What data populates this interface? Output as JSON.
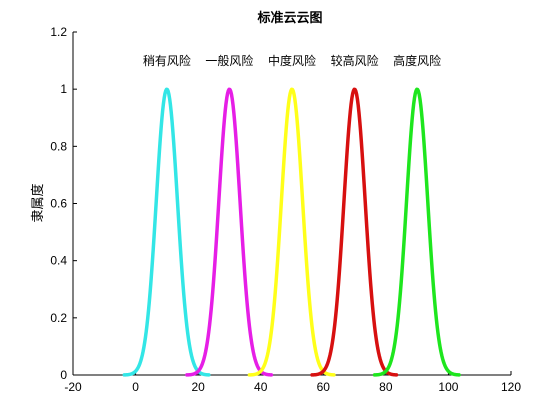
{
  "chart_data": {
    "type": "line",
    "title": "标准云云图",
    "xlabel": "",
    "ylabel": "隶属度",
    "xlim": [
      -20,
      120
    ],
    "ylim": [
      0,
      1.2
    ],
    "xticks": [
      -20,
      0,
      20,
      40,
      60,
      80,
      100,
      120
    ],
    "yticks": [
      0,
      0.2,
      0.4,
      0.6,
      0.8,
      1,
      1.2
    ],
    "grid": false,
    "series": [
      {
        "name": "稍有风险",
        "mean": 10,
        "sd": 3.4,
        "color": "#33e6e6"
      },
      {
        "name": "一般风险",
        "mean": 30,
        "sd": 3.4,
        "color": "#e61ee6"
      },
      {
        "name": "中度风险",
        "mean": 50,
        "sd": 3.4,
        "color": "#ffff1a"
      },
      {
        "name": "较高风险",
        "mean": 70,
        "sd": 3.4,
        "color": "#d71010"
      },
      {
        "name": "高度风险",
        "mean": 90,
        "sd": 3.4,
        "color": "#1ee61e"
      }
    ]
  }
}
